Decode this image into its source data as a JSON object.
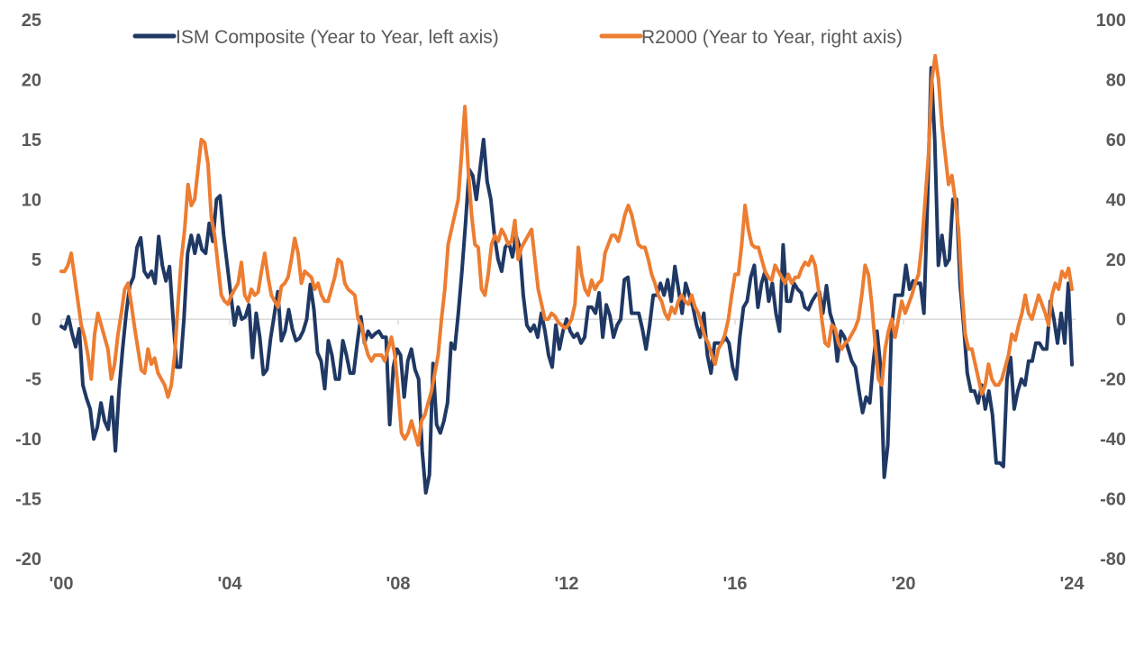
{
  "chart_data": {
    "type": "line",
    "title": "",
    "xlabel": "",
    "ylabel_left": "",
    "ylabel_right": "",
    "x_range": [
      2000,
      2024
    ],
    "x_tick_labels": [
      "'00",
      "'04",
      "'08",
      "'12",
      "'16",
      "'20",
      "'24"
    ],
    "x_tick_values": [
      2000,
      2004,
      2008,
      2012,
      2016,
      2020,
      2024
    ],
    "y_left": {
      "range": [
        -20,
        25
      ],
      "ticks": [
        25,
        20,
        15,
        10,
        5,
        0,
        -5,
        -10,
        -15,
        -20
      ]
    },
    "y_right": {
      "range": [
        -80,
        100
      ],
      "ticks": [
        100,
        80,
        60,
        40,
        20,
        0,
        -20,
        -40,
        -60,
        -80
      ]
    },
    "zero_line": true,
    "grid": false,
    "legend_position": "top",
    "sample_step_years": 0.1667,
    "series": [
      {
        "name": "ISM Composite (Year to Year, left axis)",
        "axis": "left",
        "color": "#1F3864",
        "x_start": 2000,
        "values": [
          -0.6,
          -0.8,
          0.2,
          -1.2,
          -2.3,
          -0.8,
          -5.5,
          -6.6,
          -7.5,
          -10.0,
          -9.0,
          -7.0,
          -8.5,
          -9.2,
          -6.5,
          -11.0,
          -6.0,
          -2.5,
          0.5,
          2.8,
          3.5,
          6.0,
          6.8,
          4.0,
          3.5,
          4.0,
          3.0,
          6.9,
          4.5,
          3.2,
          4.4,
          0.0,
          -4.0,
          -4.0,
          0.0,
          5.5,
          7.0,
          5.5,
          7.0,
          5.8,
          5.5,
          8.0,
          6.5,
          10.0,
          10.3,
          7.0,
          4.5,
          2.0,
          -0.5,
          1.0,
          0.0,
          0.2,
          1.2,
          -3.2,
          0.5,
          -1.5,
          -4.6,
          -4.2,
          -1.6,
          0.3,
          2.3,
          -1.8,
          -1.0,
          0.8,
          -0.8,
          -1.8,
          -1.6,
          -1.0,
          0.0,
          2.9,
          0.8,
          -2.8,
          -3.5,
          -5.8,
          -1.8,
          -3.0,
          -5.0,
          -5.0,
          -1.8,
          -3.0,
          -4.5,
          -4.5,
          -2.0,
          0.2,
          -2.0,
          -1.0,
          -1.5,
          -1.2,
          -1.0,
          -1.5,
          -1.5,
          -8.8,
          -4.0,
          -2.5,
          -3.0,
          -6.5,
          -3.5,
          -2.5,
          -4.2,
          -5.0,
          -11.0,
          -14.5,
          -13.0,
          -3.7,
          -8.8,
          -9.5,
          -8.5,
          -7.0,
          -2.0,
          -2.5,
          0.5,
          4.0,
          8.0,
          12.5,
          12.0,
          10.0,
          12.5,
          15.0,
          11.5,
          10.0,
          7.0,
          5.0,
          4.0,
          6.0,
          6.4,
          5.2,
          7.0,
          6.0,
          2.0,
          -0.5,
          -1.0,
          -0.5,
          -1.5,
          0.5,
          -1.0,
          -3.0,
          -4.0,
          -0.5,
          -2.5,
          -1.0,
          0.0,
          -1.0,
          -1.5,
          -1.2,
          -2.0,
          -1.5,
          1.0,
          1.0,
          0.5,
          2.2,
          -1.5,
          1.2,
          0.3,
          -1.5,
          -0.5,
          0.0,
          3.3,
          3.5,
          0.5,
          0.5,
          0.5,
          -0.8,
          -2.5,
          -0.5,
          2.0,
          2.0,
          3.0,
          2.0,
          3.3,
          1.5,
          4.4,
          2.5,
          0.5,
          3.0,
          2.0,
          1.0,
          -0.5,
          -1.5,
          0.5,
          -3.0,
          -4.5,
          -2.0,
          -2.0,
          -2.0,
          -1.5,
          -2.0,
          -4.0,
          -5.0,
          -1.5,
          1.0,
          1.5,
          3.5,
          4.5,
          1.0,
          3.0,
          4.0,
          1.5,
          3.0,
          0.5,
          -1.0,
          6.2,
          1.5,
          1.5,
          3.0,
          2.5,
          2.2,
          1.0,
          0.8,
          1.5,
          2.0,
          2.3,
          0.5,
          2.8,
          0.5,
          -0.5,
          -3.5,
          -1.0,
          -1.5,
          -2.5,
          -3.5,
          -4.0,
          -6.0,
          -7.8,
          -6.5,
          -7.0,
          -3.5,
          -1.0,
          -4.0,
          -13.2,
          -10.5,
          -1.0,
          2.0,
          2.0,
          2.0,
          4.5,
          2.5,
          3.2,
          3.0,
          3.0,
          0.5,
          10.0,
          21.0,
          15.0,
          4.5,
          7.0,
          4.5,
          5.0,
          10.0,
          10.0,
          3.0,
          -0.5,
          -4.5,
          -6.0,
          -6.0,
          -7.0,
          -5.5,
          -7.5,
          -6.0,
          -8.0,
          -12.0,
          -12.0,
          -12.3,
          -5.0,
          -3.2,
          -7.5,
          -6.0,
          -5.0,
          -5.5,
          -3.5,
          -3.5,
          -2.0,
          -2.0,
          -2.5,
          -2.5,
          1.5,
          0.0,
          -2.0,
          0.5,
          -2.0,
          3.0,
          -3.8
        ]
      },
      {
        "name": "R2000 (Year to Year, right axis)",
        "axis": "right",
        "color": "#ED7D31",
        "x_start": 2000,
        "values": [
          16,
          16,
          18,
          22,
          14,
          6,
          -2,
          -6,
          -12,
          -20,
          -5,
          2,
          -2,
          -6,
          -10,
          -20,
          -15,
          -5,
          2,
          10,
          12,
          5,
          -3,
          -10,
          -17,
          -18,
          -10,
          -15,
          -13,
          -18,
          -20,
          -22,
          -26,
          -22,
          -12,
          5,
          20,
          30,
          45,
          38,
          40,
          50,
          60,
          59,
          52,
          34,
          28,
          18,
          8,
          6,
          5,
          8,
          10,
          12,
          19,
          8,
          6,
          10,
          8,
          9,
          16,
          22,
          14,
          8,
          6,
          4,
          11,
          12,
          14,
          20,
          27,
          22,
          12,
          16,
          15,
          14,
          10,
          12,
          8,
          6,
          6,
          10,
          14,
          20,
          19,
          12,
          10,
          9,
          8,
          0,
          -2,
          -8,
          -12,
          -14,
          -12,
          -12,
          -12,
          -14,
          -10,
          -6,
          -12,
          -24,
          -38,
          -40,
          -38,
          -34,
          -38,
          -42,
          -34,
          -32,
          -28,
          -24,
          -18,
          -12,
          0,
          10,
          25,
          30,
          35,
          40,
          55,
          71,
          50,
          35,
          25,
          24,
          10,
          8,
          15,
          25,
          28,
          26,
          30,
          28,
          25,
          26,
          33,
          20,
          24,
          26,
          28,
          30,
          20,
          10,
          5,
          0,
          0,
          2,
          1,
          -1,
          -2,
          -3,
          -2,
          0,
          5,
          24,
          15,
          10,
          8,
          13,
          10,
          12,
          13,
          22,
          25,
          28,
          28,
          26,
          30,
          35,
          38,
          35,
          30,
          25,
          24,
          24,
          20,
          15,
          12,
          8,
          6,
          2,
          0,
          4,
          2,
          6,
          8,
          6,
          5,
          8,
          4,
          2,
          -2,
          -6,
          -8,
          -12,
          -15,
          -10,
          -8,
          -5,
          0,
          8,
          15,
          15,
          25,
          38,
          30,
          25,
          24,
          24,
          20,
          16,
          14,
          13,
          18,
          16,
          14,
          12,
          15,
          12,
          14,
          14,
          17,
          19,
          18,
          21,
          18,
          10,
          0,
          -8,
          -9,
          -2,
          -3,
          -8,
          -10,
          -8,
          -7,
          -5,
          -3,
          0,
          8,
          18,
          15,
          5,
          -8,
          -20,
          -22,
          -10,
          -4,
          0,
          -6,
          0,
          6,
          2,
          5,
          8,
          12,
          15,
          25,
          40,
          55,
          80,
          88,
          80,
          65,
          55,
          45,
          48,
          40,
          30,
          10,
          -5,
          -10,
          -10,
          -15,
          -20,
          -25,
          -22,
          -15,
          -20,
          -22,
          -22,
          -20,
          -16,
          -12,
          -5,
          -7,
          -2,
          2,
          8,
          2,
          0,
          4,
          8,
          5,
          2,
          -2,
          8,
          12,
          10,
          16,
          14,
          17,
          10
        ]
      }
    ]
  },
  "legend": {
    "items": [
      {
        "label": "ISM Composite (Year to Year, left axis)",
        "color": "#1F3864"
      },
      {
        "label": "R2000 (Year to Year, right axis)",
        "color": "#ED7D31"
      }
    ]
  }
}
